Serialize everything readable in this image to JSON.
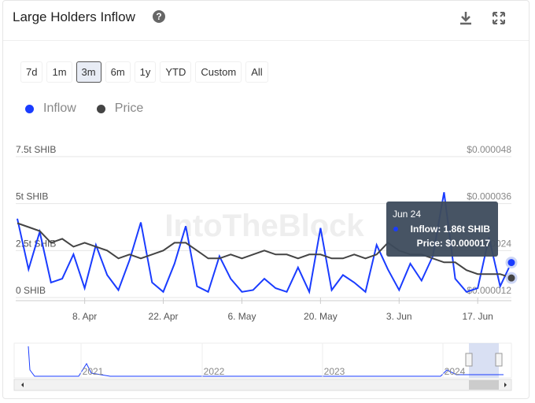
{
  "header": {
    "title": "Large Holders Inflow"
  },
  "range_buttons": [
    "7d",
    "1m",
    "3m",
    "6m",
    "1y",
    "YTD",
    "Custom",
    "All"
  ],
  "active_range": 2,
  "watermark": "IntoTheBlock",
  "chart_data": {
    "type": "line",
    "categories": [
      null,
      null,
      null,
      null,
      null,
      null,
      "8. Apr",
      null,
      null,
      null,
      null,
      null,
      null,
      "22. Apr",
      null,
      null,
      null,
      null,
      null,
      null,
      "6. May",
      null,
      null,
      null,
      null,
      null,
      null,
      "20. May",
      null,
      null,
      null,
      null,
      null,
      null,
      "3. Jun",
      null,
      null,
      null,
      null,
      null,
      null,
      "17. Jun",
      null,
      null,
      null
    ],
    "series": [
      {
        "name": "Inflow",
        "color": "#1a3cff",
        "values": [
          4.2,
          1.5,
          3.5,
          0.8,
          1.0,
          2.3,
          0.5,
          2.8,
          1.2,
          0.4,
          2.0,
          4.0,
          0.8,
          0.3,
          1.8,
          3.8,
          0.6,
          0.3,
          2.2,
          1.0,
          0.3,
          0.4,
          1.0,
          0.5,
          0.3,
          1.6,
          0.3,
          3.7,
          0.4,
          1.2,
          0.8,
          0.3,
          2.8,
          1.5,
          0.4,
          1.8,
          0.9,
          2.2,
          5.6,
          1.0,
          0.3,
          0.5,
          3.2,
          0.6,
          1.86
        ]
      },
      {
        "name": "Price",
        "color": "#444444",
        "axis": "y2",
        "values": [
          3.1e-05,
          3e-05,
          2.9e-05,
          2.6e-05,
          2.7e-05,
          2.5e-05,
          2.6e-05,
          2.5e-05,
          2.4e-05,
          2.2e-05,
          2.3e-05,
          2.2e-05,
          2.3e-05,
          2.4e-05,
          2.6e-05,
          2.6e-05,
          2.4e-05,
          2.2e-05,
          2.2e-05,
          2.3e-05,
          2.2e-05,
          2.3e-05,
          2.4e-05,
          2.3e-05,
          2.3e-05,
          2.2e-05,
          2.3e-05,
          2.3e-05,
          2.2e-05,
          2.2e-05,
          2.3e-05,
          2.2e-05,
          2.3e-05,
          2.6e-05,
          2.4e-05,
          2.3e-05,
          2.3e-05,
          2.2e-05,
          2.1e-05,
          2.1e-05,
          1.9e-05,
          1.8e-05,
          1.8e-05,
          1.8e-05,
          1.7e-05
        ]
      }
    ],
    "ylim": [
      0,
      7.5
    ],
    "yticks": [
      {
        "value": 0,
        "label": "0 SHIB"
      },
      {
        "value": 2.5,
        "label": "2.5t SHIB"
      },
      {
        "value": 5,
        "label": "5t SHIB"
      },
      {
        "value": 7.5,
        "label": "7.5t SHIB"
      }
    ],
    "y2lim": [
      1.2e-05,
      4.8e-05
    ],
    "y2ticks": [
      {
        "value": 1.2e-05,
        "label": "$0.000012"
      },
      {
        "value": 2.4e-05,
        "label": "$0.000024"
      },
      {
        "value": 3.6e-05,
        "label": "$0.000036"
      },
      {
        "value": 4.8e-05,
        "label": "$0.000048"
      }
    ],
    "grid": true,
    "tooltip": {
      "date": "Jun 24",
      "lines": [
        "Inflow: 1.86t SHIB",
        "Price: $0.000017"
      ]
    }
  },
  "navigator": {
    "years": [
      "2021",
      "2022",
      "2023",
      "2024"
    ]
  }
}
